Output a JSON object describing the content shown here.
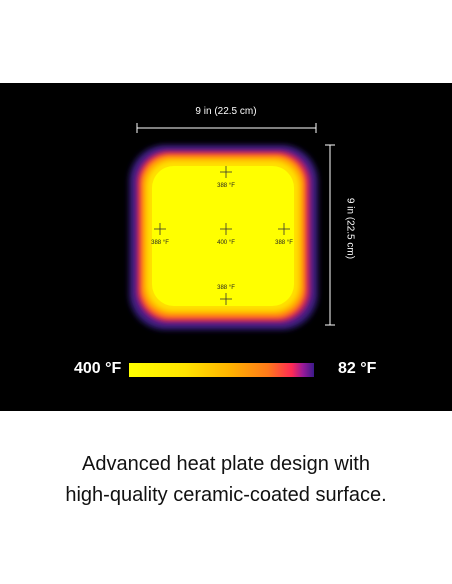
{
  "dimensions": {
    "width_label": "9 in (22.5 cm)",
    "height_label": "9 in (22.5 cm)"
  },
  "measurement_points": [
    {
      "name": "top",
      "label": "388 °F"
    },
    {
      "name": "left",
      "label": "388 °F"
    },
    {
      "name": "center",
      "label": "400 °F"
    },
    {
      "name": "right",
      "label": "388 °F"
    },
    {
      "name": "bottom",
      "label": "388 °F"
    }
  ],
  "scale": {
    "max_label": "400 °F",
    "min_label": "82 °F"
  },
  "caption": {
    "line1": "Advanced heat plate design with",
    "line2": "high-quality ceramic-coated surface."
  },
  "colors": {
    "hot": "#ffff00",
    "cold": "#3a1a8a",
    "background": "#000000"
  }
}
